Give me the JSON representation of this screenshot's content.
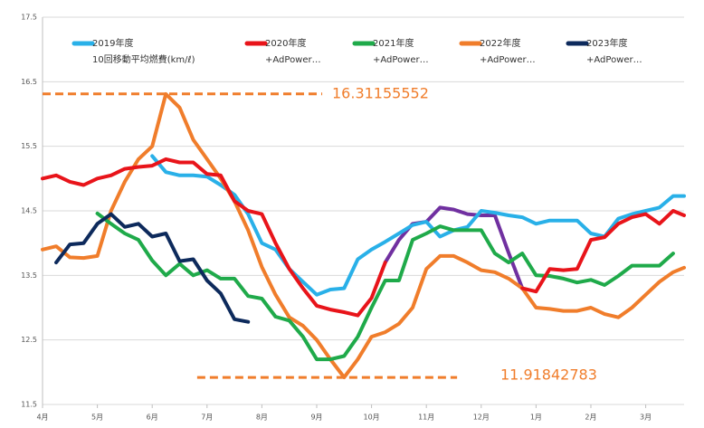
{
  "chart_data": {
    "type": "line",
    "x": [
      0,
      0.25,
      0.5,
      0.75,
      1,
      1.25,
      1.5,
      1.75,
      2,
      2.25,
      2.5,
      2.75,
      3,
      3.25,
      3.5,
      3.75,
      4,
      4.25,
      4.5,
      4.75,
      5,
      5.25,
      5.5,
      5.75,
      6,
      6.25,
      6.5,
      6.75,
      7,
      7.25,
      7.5,
      7.75,
      8,
      8.25,
      8.5,
      8.75,
      9,
      9.25,
      9.5,
      9.75,
      10,
      10.25,
      10.5,
      10.75,
      11,
      11.25,
      11.5,
      11.7
    ],
    "xlim": [
      0,
      11.7
    ],
    "xticks": [
      {
        "value": 0,
        "label": "4月"
      },
      {
        "value": 1,
        "label": "5月"
      },
      {
        "value": 2,
        "label": "6月"
      },
      {
        "value": 3,
        "label": "7月"
      },
      {
        "value": 4,
        "label": "8月"
      },
      {
        "value": 5,
        "label": "9月"
      },
      {
        "value": 6,
        "label": "10月"
      },
      {
        "value": 7,
        "label": "11月"
      },
      {
        "value": 8,
        "label": "12月"
      },
      {
        "value": 9,
        "label": "1月"
      },
      {
        "value": 10,
        "label": "2月"
      },
      {
        "value": 11,
        "label": "3月"
      }
    ],
    "ylim": [
      11.5,
      17.5
    ],
    "yticks": [
      11.5,
      12.5,
      13.5,
      14.5,
      15.5,
      16.5,
      17.5
    ],
    "grid": true,
    "hlines": [
      16.31155552,
      11.91842783
    ],
    "hline_color": "#f07d2b",
    "series": [
      {
        "name": "2019年度",
        "legend_sub": "10回移動平均燃費(km/ℓ)",
        "color": "#29b0e8",
        "values": [
          null,
          null,
          null,
          null,
          null,
          null,
          null,
          null,
          15.35,
          15.1,
          15.05,
          15.05,
          15.03,
          14.9,
          14.75,
          14.45,
          14.0,
          13.9,
          13.6,
          13.4,
          13.2,
          13.28,
          13.3,
          13.75,
          13.9,
          14.02,
          14.15,
          14.28,
          14.33,
          14.1,
          14.2,
          14.25,
          14.5,
          14.47,
          14.43,
          14.4,
          14.3,
          14.35,
          14.35,
          14.35,
          14.15,
          14.1,
          14.38,
          14.45,
          14.5,
          14.55,
          14.73,
          14.73
        ]
      },
      {
        "name": "2020年度",
        "legend_sub": "+AdPower…",
        "color": "#e8141a",
        "values": [
          15.0,
          15.05,
          14.95,
          14.9,
          15.0,
          15.05,
          15.15,
          15.18,
          15.2,
          15.3,
          15.25,
          15.25,
          15.07,
          15.05,
          14.65,
          14.5,
          14.45,
          14.0,
          13.6,
          13.3,
          13.03,
          12.97,
          12.93,
          12.88,
          13.15,
          13.7,
          null,
          null,
          null,
          null,
          null,
          null,
          null,
          null,
          null,
          13.3,
          13.25,
          13.6,
          13.58,
          13.6,
          14.05,
          14.09,
          14.3,
          14.4,
          14.45,
          14.3,
          14.5,
          14.43
        ]
      },
      {
        "name": "2021年度",
        "legend_sub": "+AdPower…",
        "color": "#1faa4a",
        "values": [
          null,
          null,
          null,
          null,
          14.46,
          14.3,
          14.15,
          14.05,
          13.73,
          13.5,
          13.68,
          13.5,
          13.58,
          13.45,
          13.45,
          13.18,
          13.14,
          12.86,
          12.8,
          12.55,
          12.2,
          12.2,
          12.25,
          12.55,
          13.0,
          13.42,
          13.42,
          14.05,
          14.15,
          14.26,
          14.2,
          14.2,
          14.2,
          13.84,
          13.7,
          13.84,
          13.5,
          13.49,
          13.45,
          13.39,
          13.43,
          13.35,
          13.49,
          13.65,
          13.65,
          13.65,
          13.84,
          null
        ]
      },
      {
        "name": "2022年度",
        "legend_sub": "+AdPower…",
        "color": "#f07d2b",
        "values": [
          13.9,
          13.95,
          13.78,
          13.77,
          13.8,
          14.5,
          14.95,
          15.3,
          15.5,
          16.31,
          16.1,
          15.6,
          15.3,
          15.0,
          14.65,
          14.2,
          13.63,
          13.2,
          12.85,
          12.72,
          12.5,
          12.2,
          11.92,
          12.2,
          12.55,
          12.62,
          12.75,
          13.0,
          13.6,
          13.8,
          13.8,
          13.7,
          13.58,
          13.55,
          13.45,
          13.3,
          13.0,
          12.98,
          12.95,
          12.95,
          13.0,
          12.9,
          12.85,
          13.0,
          13.2,
          13.4,
          13.55,
          13.62
        ]
      },
      {
        "name": "2023年度",
        "legend_sub": "+AdPower…",
        "color": "#0d2a5c",
        "values": [
          null,
          13.7,
          13.98,
          14.0,
          14.3,
          14.45,
          14.25,
          14.3,
          14.1,
          14.15,
          13.72,
          13.75,
          13.42,
          13.22,
          12.82,
          12.78,
          null,
          null,
          null,
          null,
          null,
          null,
          null,
          null,
          null,
          null,
          null,
          null,
          null,
          null,
          null,
          null,
          null,
          null,
          null,
          null,
          null,
          null,
          null,
          null,
          null,
          null,
          null,
          null,
          null,
          null,
          null,
          null
        ]
      },
      {
        "color": "#7030a0",
        "legend": false,
        "values": [
          null,
          null,
          null,
          null,
          null,
          null,
          null,
          null,
          null,
          null,
          null,
          null,
          null,
          null,
          null,
          null,
          null,
          null,
          null,
          null,
          null,
          null,
          null,
          null,
          null,
          13.7,
          14.05,
          14.3,
          14.33,
          14.55,
          14.52,
          14.45,
          14.43,
          14.43,
          13.85,
          13.3,
          null,
          null,
          null,
          null,
          null,
          null,
          null,
          null,
          null,
          null,
          null,
          null
        ]
      }
    ]
  }
}
